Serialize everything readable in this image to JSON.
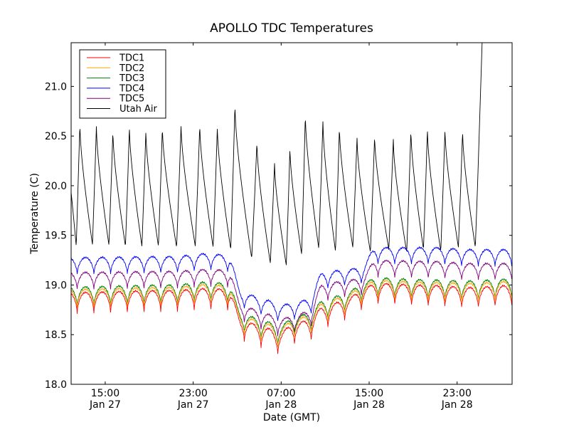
{
  "chart_data": {
    "type": "line",
    "title": "APOLLO TDC Temperatures",
    "xlabel": "Date (GMT)",
    "ylabel": "Temperature (C)",
    "ylim": [
      18.0,
      21.44
    ],
    "xlim_hours": [
      -3.1,
      37.0
    ],
    "x_unit": "hours since 15:00 Jan 27 (GMT)",
    "grid": false,
    "legend_position": "top-left",
    "y_ticks": [
      {
        "value": 18.0,
        "label": "18.0"
      },
      {
        "value": 18.5,
        "label": "18.5"
      },
      {
        "value": 19.0,
        "label": "19.0"
      },
      {
        "value": 19.5,
        "label": "19.5"
      },
      {
        "value": 20.0,
        "label": "20.0"
      },
      {
        "value": 20.5,
        "label": "20.5"
      },
      {
        "value": 21.0,
        "label": "21.0"
      }
    ],
    "x_ticks": [
      {
        "hour": 0,
        "time": "15:00",
        "date": "Jan 27"
      },
      {
        "hour": 8,
        "time": "23:00",
        "date": "Jan 27"
      },
      {
        "hour": 16,
        "time": "07:00",
        "date": "Jan 28"
      },
      {
        "hour": 24,
        "time": "15:00",
        "date": "Jan 28"
      },
      {
        "hour": 32,
        "time": "23:00",
        "date": "Jan 28"
      }
    ],
    "x": [
      -3.0,
      -2.5,
      -2.0,
      -1.5,
      -1.0,
      -0.5,
      0.0,
      0.5,
      1.0,
      1.5,
      2.0,
      2.5,
      3.0,
      3.5,
      4.0,
      4.5,
      5.0,
      5.5,
      6.0,
      6.5,
      7.0,
      7.5,
      8.0,
      8.5,
      9.0,
      9.5,
      10.0,
      10.5,
      11.0,
      11.5,
      12.0,
      12.5,
      13.0,
      13.5,
      14.0,
      14.5,
      15.0,
      15.5,
      16.0,
      16.5,
      17.0,
      17.5,
      18.0,
      18.5,
      19.0,
      19.5,
      20.0,
      20.5,
      21.0,
      21.5,
      22.0,
      22.5,
      23.0,
      23.5,
      24.0,
      24.5,
      25.0,
      25.5,
      26.0,
      26.5,
      27.0,
      27.5,
      28.0,
      28.5,
      29.0,
      29.5,
      30.0,
      30.5,
      31.0,
      31.5,
      32.0,
      32.5,
      33.0
    ],
    "oscillation_period_hours": 1.52,
    "series": [
      {
        "name": "TDC1",
        "color": "#ff0000",
        "baseline": [
          [
            -3.1,
            18.83
          ],
          [
            6.0,
            18.85
          ],
          [
            9.5,
            18.87
          ],
          [
            11.2,
            18.86
          ],
          [
            12.4,
            18.55
          ],
          [
            14.5,
            18.48
          ],
          [
            15.8,
            18.42
          ],
          [
            17.2,
            18.52
          ],
          [
            18.5,
            18.55
          ],
          [
            19.8,
            18.68
          ],
          [
            22.0,
            18.76
          ],
          [
            23.3,
            18.86
          ],
          [
            24.6,
            18.92
          ],
          [
            30.0,
            18.9
          ],
          [
            33.0,
            18.88
          ],
          [
            37.0,
            18.9
          ]
        ],
        "amplitude": 0.21,
        "values": [
          18.86,
          18.74,
          18.92,
          18.73,
          18.93,
          18.72,
          18.91,
          18.74,
          18.93,
          18.73,
          18.93,
          18.74,
          18.95,
          18.75,
          18.94,
          18.75,
          18.96,
          18.76,
          18.97,
          18.77,
          18.96,
          18.76,
          18.95,
          18.77,
          18.95,
          18.76,
          18.95,
          18.76,
          18.96,
          18.73,
          18.66,
          18.48,
          18.62,
          18.41,
          18.6,
          18.36,
          18.55,
          18.3,
          18.53,
          18.34,
          18.61,
          18.4,
          18.63,
          18.52,
          18.8,
          18.58,
          18.86,
          18.64,
          18.85,
          18.66,
          18.9,
          18.75,
          18.97,
          18.83,
          19.01,
          18.82,
          19.02,
          18.82,
          19.02,
          18.81,
          19.03,
          18.81,
          19.01,
          18.8,
          19.01,
          18.79,
          19.0,
          18.79,
          19.0,
          18.8,
          19.0,
          18.79,
          18.98
        ]
      },
      {
        "name": "TDC2",
        "color": "#ffa500",
        "baseline": [
          [
            -3.1,
            18.87
          ],
          [
            6.0,
            18.89
          ],
          [
            9.5,
            18.92
          ],
          [
            11.2,
            18.9
          ],
          [
            12.4,
            18.6
          ],
          [
            14.5,
            18.53
          ],
          [
            15.8,
            18.47
          ],
          [
            17.2,
            18.57
          ],
          [
            18.5,
            18.6
          ],
          [
            19.8,
            18.73
          ],
          [
            22.0,
            18.81
          ],
          [
            23.3,
            18.9
          ],
          [
            24.6,
            18.96
          ],
          [
            30.0,
            18.94
          ],
          [
            33.0,
            18.93
          ],
          [
            37.0,
            18.95
          ]
        ],
        "amplitude": 0.19,
        "values": [
          18.9,
          18.79,
          18.95,
          18.78,
          18.96,
          18.77,
          18.95,
          18.78,
          18.96,
          18.78,
          18.96,
          18.79,
          18.98,
          18.8,
          18.97,
          18.8,
          18.99,
          18.81,
          19.0,
          18.82,
          19.0,
          18.81,
          18.99,
          18.82,
          18.99,
          18.81,
          19.0,
          18.81,
          19.0,
          18.78,
          18.7,
          18.53,
          18.66,
          18.46,
          18.64,
          18.41,
          18.59,
          18.35,
          18.57,
          18.39,
          18.65,
          18.45,
          18.67,
          18.57,
          18.84,
          18.63,
          18.9,
          18.69,
          18.89,
          18.71,
          18.94,
          18.8,
          19.01,
          18.88,
          19.05,
          18.86,
          19.06,
          18.86,
          19.06,
          18.85,
          19.07,
          18.85,
          19.05,
          18.84,
          19.05,
          18.84,
          19.04,
          18.84,
          19.04,
          18.85,
          19.04,
          18.84,
          19.02
        ]
      },
      {
        "name": "TDC3",
        "color": "#008000",
        "baseline": [
          [
            -3.1,
            18.89
          ],
          [
            6.0,
            18.91
          ],
          [
            9.5,
            18.94
          ],
          [
            11.2,
            18.92
          ],
          [
            12.4,
            18.62
          ],
          [
            14.5,
            18.55
          ],
          [
            15.8,
            18.49
          ],
          [
            17.2,
            18.59
          ],
          [
            18.5,
            18.62
          ],
          [
            19.8,
            18.75
          ],
          [
            22.0,
            18.83
          ],
          [
            23.3,
            18.92
          ],
          [
            24.6,
            18.98
          ],
          [
            30.0,
            18.96
          ],
          [
            33.0,
            18.95
          ],
          [
            37.0,
            18.97
          ]
        ],
        "amplitude": 0.2,
        "values": [
          18.92,
          18.8,
          18.98,
          18.79,
          18.98,
          18.78,
          18.97,
          18.8,
          18.98,
          18.79,
          18.98,
          18.8,
          19.0,
          18.81,
          18.99,
          18.82,
          19.01,
          18.82,
          19.02,
          18.83,
          19.02,
          18.83,
          19.01,
          18.83,
          19.01,
          18.82,
          19.02,
          18.82,
          19.02,
          18.79,
          18.72,
          18.54,
          18.68,
          18.47,
          18.66,
          18.42,
          18.61,
          18.36,
          18.59,
          18.4,
          18.67,
          18.46,
          18.69,
          18.58,
          18.86,
          18.64,
          18.92,
          18.7,
          18.91,
          18.72,
          18.96,
          18.81,
          19.03,
          18.89,
          19.07,
          18.87,
          19.08,
          18.87,
          19.08,
          18.86,
          19.09,
          18.86,
          19.07,
          18.85,
          19.07,
          18.85,
          19.06,
          18.85,
          19.06,
          18.86,
          19.06,
          18.85,
          19.04
        ]
      },
      {
        "name": "TDC4",
        "color": "#0000ff",
        "baseline": [
          [
            -3.1,
            19.2
          ],
          [
            6.0,
            19.21
          ],
          [
            9.5,
            19.24
          ],
          [
            11.2,
            19.22
          ],
          [
            12.4,
            18.85
          ],
          [
            14.5,
            18.78
          ],
          [
            15.8,
            18.72
          ],
          [
            17.2,
            18.74
          ],
          [
            18.5,
            18.78
          ],
          [
            19.8,
            19.05
          ],
          [
            22.0,
            19.08
          ],
          [
            23.3,
            19.1
          ],
          [
            24.6,
            19.3
          ],
          [
            30.0,
            19.3
          ],
          [
            33.0,
            19.28
          ],
          [
            37.0,
            19.28
          ]
        ],
        "amplitude": 0.17,
        "values": [
          19.21,
          19.11,
          19.25,
          19.09,
          19.26,
          19.09,
          19.25,
          19.1,
          19.26,
          19.1,
          19.26,
          19.11,
          19.27,
          19.11,
          19.27,
          19.12,
          19.28,
          19.12,
          19.29,
          19.13,
          19.29,
          19.13,
          19.29,
          19.14,
          19.3,
          19.13,
          19.3,
          19.13,
          19.29,
          19.1,
          18.92,
          18.77,
          18.88,
          18.71,
          18.84,
          18.67,
          18.8,
          18.65,
          18.79,
          18.66,
          18.83,
          18.7,
          18.86,
          18.74,
          19.1,
          18.92,
          19.13,
          18.95,
          19.12,
          18.97,
          19.15,
          19.05,
          19.33,
          19.18,
          19.36,
          19.18,
          19.37,
          19.19,
          19.37,
          19.19,
          19.36,
          19.18,
          19.35,
          19.17,
          19.35,
          19.17,
          19.34,
          19.16,
          19.34,
          19.17,
          19.33,
          19.16,
          19.3
        ]
      },
      {
        "name": "TDC5",
        "color": "#800080",
        "baseline": [
          [
            -3.1,
            19.05
          ],
          [
            6.0,
            19.06
          ],
          [
            9.5,
            19.08
          ],
          [
            11.2,
            19.07
          ],
          [
            12.4,
            18.72
          ],
          [
            14.5,
            18.64
          ],
          [
            15.8,
            18.58
          ],
          [
            17.2,
            18.61
          ],
          [
            18.5,
            18.66
          ],
          [
            19.8,
            18.93
          ],
          [
            22.0,
            18.97
          ],
          [
            23.3,
            18.99
          ],
          [
            24.6,
            19.17
          ],
          [
            30.0,
            19.16
          ],
          [
            33.0,
            19.14
          ],
          [
            37.0,
            19.14
          ]
        ],
        "amplitude": 0.17,
        "values": [
          19.07,
          18.96,
          19.11,
          18.95,
          19.12,
          18.94,
          19.11,
          18.95,
          19.12,
          18.95,
          19.12,
          18.96,
          19.13,
          18.96,
          19.13,
          18.97,
          19.14,
          18.97,
          19.15,
          18.98,
          19.15,
          18.98,
          19.14,
          18.98,
          19.14,
          18.97,
          19.15,
          18.97,
          19.14,
          18.94,
          18.79,
          18.63,
          18.75,
          18.58,
          18.71,
          18.54,
          18.67,
          18.51,
          18.66,
          18.52,
          18.7,
          18.57,
          18.73,
          18.62,
          18.98,
          18.8,
          19.01,
          18.83,
          19.0,
          18.85,
          19.03,
          18.93,
          19.2,
          19.05,
          19.23,
          19.05,
          19.24,
          19.06,
          19.24,
          19.06,
          19.23,
          19.05,
          19.22,
          19.04,
          19.22,
          19.04,
          19.21,
          19.03,
          19.21,
          19.04,
          19.2,
          19.03,
          19.17
        ]
      },
      {
        "name": "Utah Air",
        "color": "#000000",
        "peak_hours": [
          -2.3,
          -0.8,
          0.7,
          2.2,
          3.7,
          5.2,
          6.9,
          8.6,
          10.2,
          11.8,
          13.8,
          15.4,
          16.8,
          18.2,
          19.8,
          21.3,
          22.9,
          24.5,
          26.2,
          27.8,
          29.3,
          30.9,
          32.5
        ],
        "peak_values": [
          20.63,
          20.61,
          20.56,
          20.6,
          20.56,
          20.6,
          20.62,
          20.62,
          20.6,
          20.83,
          20.45,
          20.23,
          20.39,
          20.73,
          20.66,
          20.6,
          20.49,
          20.51,
          20.47,
          20.57,
          20.58,
          20.58,
          20.56
        ],
        "trough_values": [
          19.39,
          19.41,
          19.4,
          19.39,
          19.39,
          19.39,
          19.38,
          19.39,
          19.38,
          19.36,
          19.27,
          19.22,
          19.2,
          19.31,
          19.37,
          19.34,
          19.38,
          19.33,
          19.36,
          19.33,
          19.36,
          19.34,
          19.38
        ],
        "values": [
          19.75,
          20.63,
          20.05,
          19.6,
          20.61,
          20.0,
          19.62,
          20.56,
          19.98,
          19.58,
          20.6,
          20.02,
          19.6,
          20.56,
          19.98,
          19.58,
          20.6,
          20.0,
          19.55,
          20.62,
          20.05,
          19.58,
          20.62,
          20.03,
          19.6,
          20.6,
          20.1,
          19.6,
          20.83,
          20.2,
          19.75,
          19.6,
          20.45,
          19.5,
          19.4,
          20.23,
          19.35,
          20.39,
          19.6,
          19.45,
          20.73,
          20.1,
          19.55,
          20.66,
          20.05,
          19.5,
          20.6,
          20.0,
          19.55,
          20.49,
          19.95,
          19.5,
          20.51,
          19.95,
          19.5,
          20.47,
          19.9,
          19.48,
          20.57,
          20.0,
          19.5,
          20.58,
          20.02,
          19.52,
          20.58,
          20.02,
          19.5,
          20.56,
          20.0,
          19.5,
          20.56,
          20.0,
          19.55
        ]
      }
    ]
  }
}
